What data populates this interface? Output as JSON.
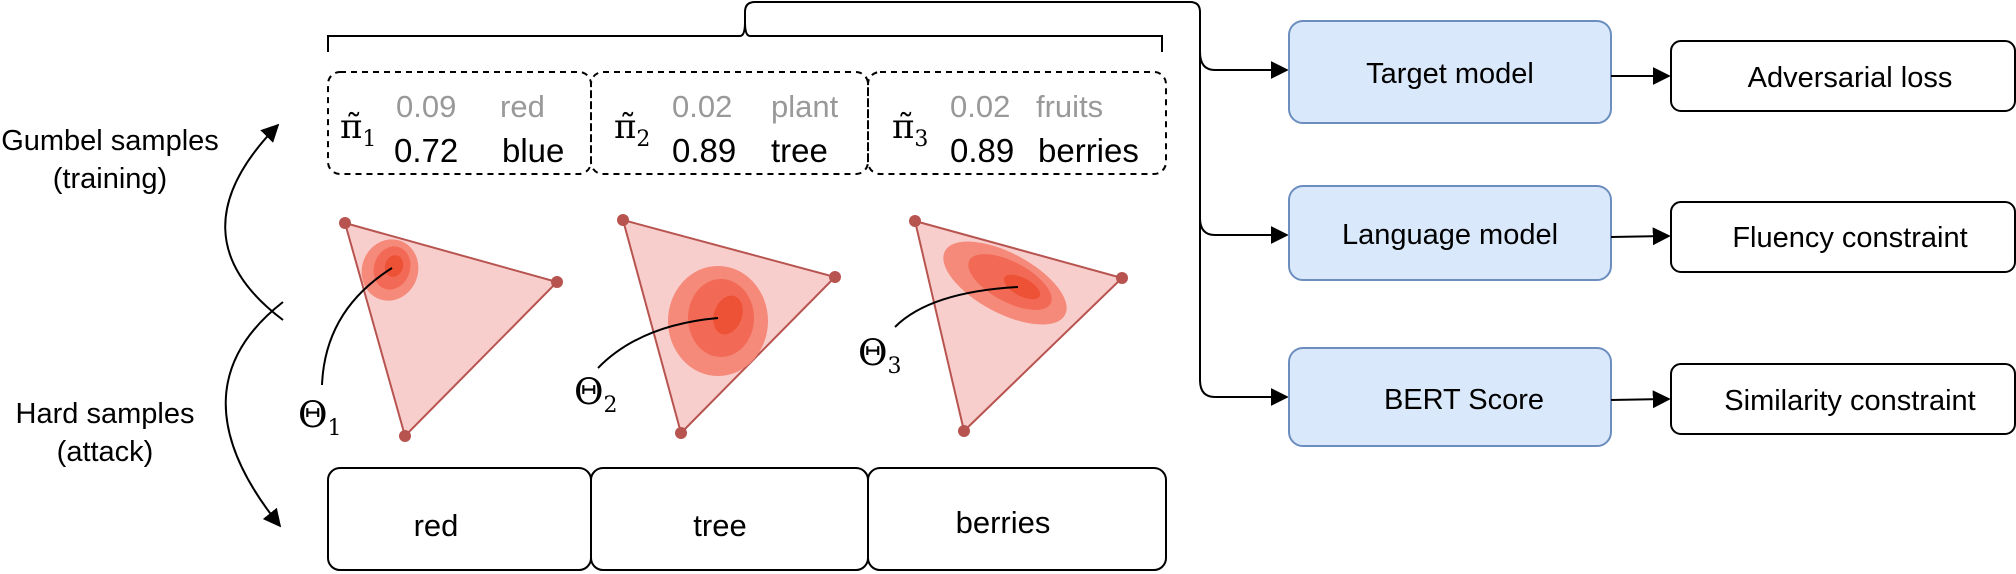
{
  "left_labels": {
    "gumbel_line1": "Gumbel samples",
    "gumbel_line2": "(training)",
    "hard_line1": "Hard samples",
    "hard_line2": "(attack)"
  },
  "samples": [
    {
      "pi_symbol": "π̃",
      "pi_index": "1",
      "top_prob": "0.09",
      "top_word": "red",
      "bottom_prob": "0.72",
      "bottom_word": "blue",
      "theta_symbol": "Θ",
      "theta_index": "1",
      "hard_word": "red"
    },
    {
      "pi_symbol": "π̃",
      "pi_index": "2",
      "top_prob": "0.02",
      "top_word": "plant",
      "bottom_prob": "0.89",
      "bottom_word": "tree",
      "theta_symbol": "Θ",
      "theta_index": "2",
      "hard_word": "tree"
    },
    {
      "pi_symbol": "π̃",
      "pi_index": "3",
      "top_prob": "0.02",
      "top_word": "fruits",
      "bottom_prob": "0.89",
      "bottom_word": "berries",
      "theta_symbol": "Θ",
      "theta_index": "3",
      "hard_word": "berries"
    }
  ],
  "models": [
    {
      "label": "Target model",
      "output": "Adversarial loss"
    },
    {
      "label": "Language model",
      "output": "Fluency constraint"
    },
    {
      "label": "BERT Score",
      "output": "Similarity constraint"
    }
  ],
  "colors": {
    "model_box_fill": "#dae8fc",
    "model_box_stroke": "#6c8ebf",
    "simplex_fill": "#f8cecc",
    "simplex_stroke": "#b85450",
    "vertex": "#b85450",
    "blob_outer": "#f5897a",
    "blob_mid": "#f26a55",
    "blob_inner": "#ee5236",
    "probability_gray": "#999999"
  }
}
